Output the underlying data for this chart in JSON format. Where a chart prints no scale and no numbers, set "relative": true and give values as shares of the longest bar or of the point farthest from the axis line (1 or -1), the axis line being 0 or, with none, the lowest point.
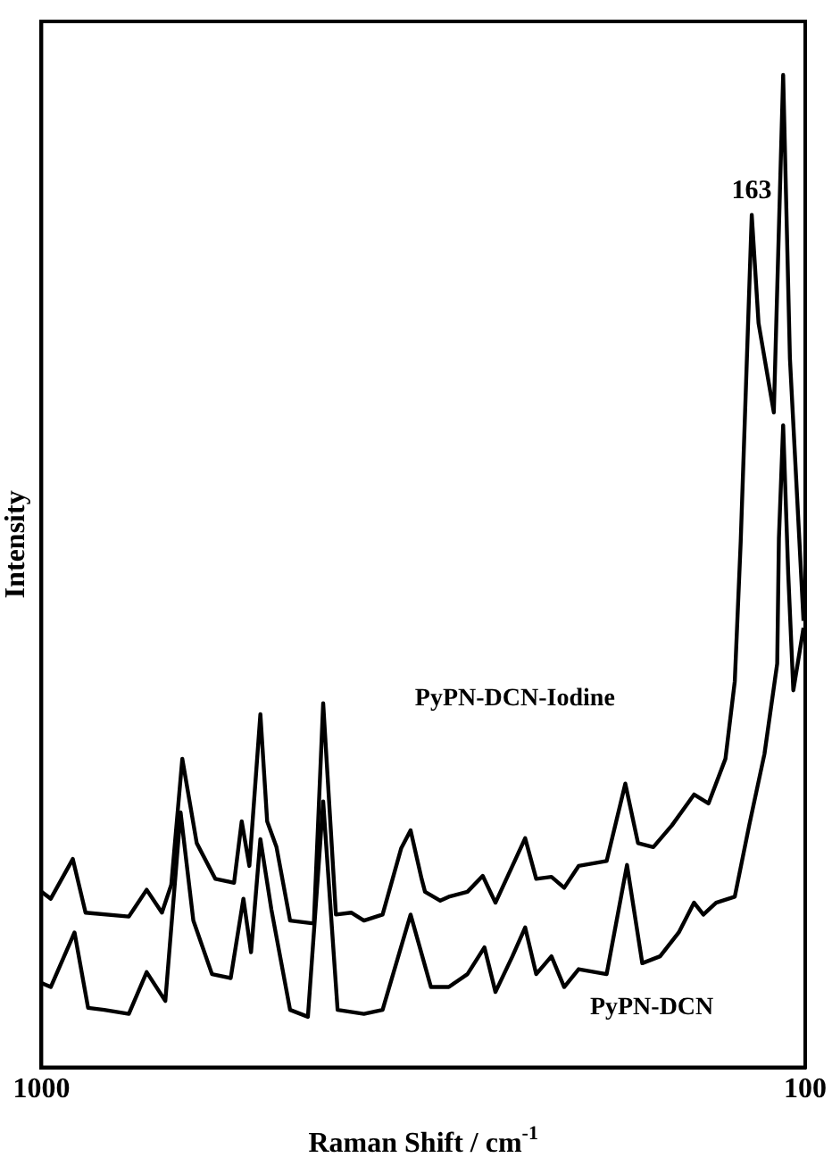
{
  "chart_data": {
    "type": "line",
    "relative": true,
    "xlabel": "Raman Shift / cm$^{-1}$",
    "ylabel": "Intensity",
    "xlim": [
      1000,
      100
    ],
    "xticks": [
      1000,
      100
    ],
    "tick_labels": "x",
    "legend": false,
    "marker": "none",
    "line_style": "solid",
    "annotations": [
      {
        "text": "163",
        "x": 163,
        "y": 0.859
      }
    ],
    "series": [
      {
        "name": "PyPN-DCN-Iodine",
        "color": "#000000",
        "x": [
          1000,
          989,
          963,
          948,
          897,
          876,
          858,
          847,
          834,
          817,
          795,
          773,
          764,
          755,
          742,
          734,
          723,
          707,
          679,
          668,
          653,
          635,
          620,
          598,
          576,
          565,
          552,
          548,
          530,
          520,
          498,
          480,
          465,
          445,
          430,
          417,
          399,
          384,
          367,
          334,
          312,
          297,
          279,
          257,
          231,
          214,
          194,
          183,
          176,
          163,
          155,
          137,
          126,
          118,
          107,
          102
        ],
        "values": [
          0.177,
          0.17,
          0.21,
          0.156,
          0.152,
          0.179,
          0.156,
          0.184,
          0.311,
          0.226,
          0.19,
          0.186,
          0.248,
          0.203,
          0.356,
          0.248,
          0.222,
          0.148,
          0.145,
          0.367,
          0.154,
          0.156,
          0.148,
          0.154,
          0.221,
          0.239,
          0.19,
          0.177,
          0.168,
          0.172,
          0.177,
          0.193,
          0.166,
          0.203,
          0.231,
          0.19,
          0.192,
          0.181,
          0.203,
          0.208,
          0.286,
          0.226,
          0.222,
          0.244,
          0.275,
          0.266,
          0.311,
          0.389,
          0.53,
          0.859,
          0.75,
          0.66,
          1,
          0.714,
          0.533,
          0.45
        ]
      },
      {
        "name": "PyPN-DCN",
        "color": "#000000",
        "x": [
          1000,
          989,
          961,
          945,
          926,
          897,
          876,
          854,
          836,
          821,
          799,
          777,
          762,
          753,
          742,
          729,
          707,
          686,
          668,
          651,
          620,
          598,
          565,
          541,
          520,
          498,
          478,
          465,
          445,
          430,
          417,
          399,
          384,
          367,
          334,
          310,
          292,
          271,
          249,
          231,
          220,
          205,
          183,
          166,
          148,
          133,
          131,
          126,
          120,
          114,
          102
        ],
        "values": [
          0.085,
          0.081,
          0.136,
          0.06,
          0.058,
          0.054,
          0.096,
          0.067,
          0.257,
          0.148,
          0.094,
          0.09,
          0.17,
          0.116,
          0.23,
          0.159,
          0.058,
          0.051,
          0.268,
          0.058,
          0.054,
          0.058,
          0.154,
          0.081,
          0.081,
          0.094,
          0.121,
          0.076,
          0.112,
          0.141,
          0.094,
          0.112,
          0.081,
          0.099,
          0.094,
          0.204,
          0.105,
          0.112,
          0.136,
          0.166,
          0.154,
          0.166,
          0.172,
          0.244,
          0.316,
          0.407,
          0.533,
          0.647,
          0.497,
          0.38,
          0.443
        ]
      }
    ]
  }
}
